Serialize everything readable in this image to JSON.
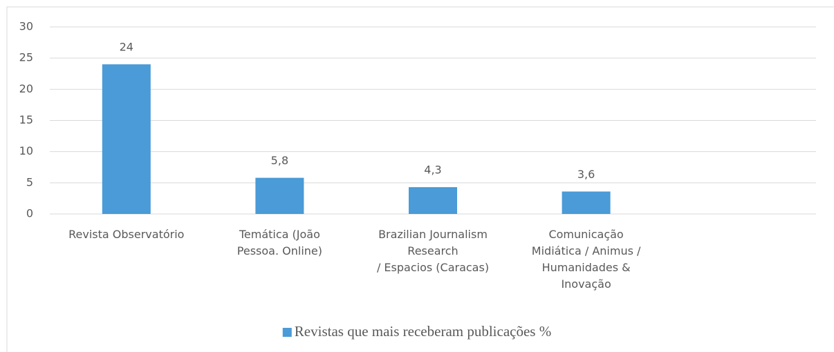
{
  "chart_data": {
    "type": "bar",
    "categories": [
      "Revista Observatório",
      "Temática (João\nPessoa. Online)",
      "Brazilian Journalism\nResearch\n/ Espacios (Caracas)",
      "Comunicação\nMidiática / Animus /\nHumanidades &\nInovação",
      null
    ],
    "series": [
      {
        "name": "Revistas que mais receberam publicações %",
        "color": "#4a9bd7",
        "values": [
          24,
          5.8,
          4.3,
          3.6,
          null
        ],
        "value_labels": [
          "24",
          "5,8",
          "4,3",
          "3,6",
          null
        ]
      }
    ],
    "ylim": [
      0,
      30
    ],
    "yticks": [
      0,
      5,
      10,
      15,
      20,
      25,
      30
    ],
    "grid": true,
    "legend": "bottom"
  }
}
